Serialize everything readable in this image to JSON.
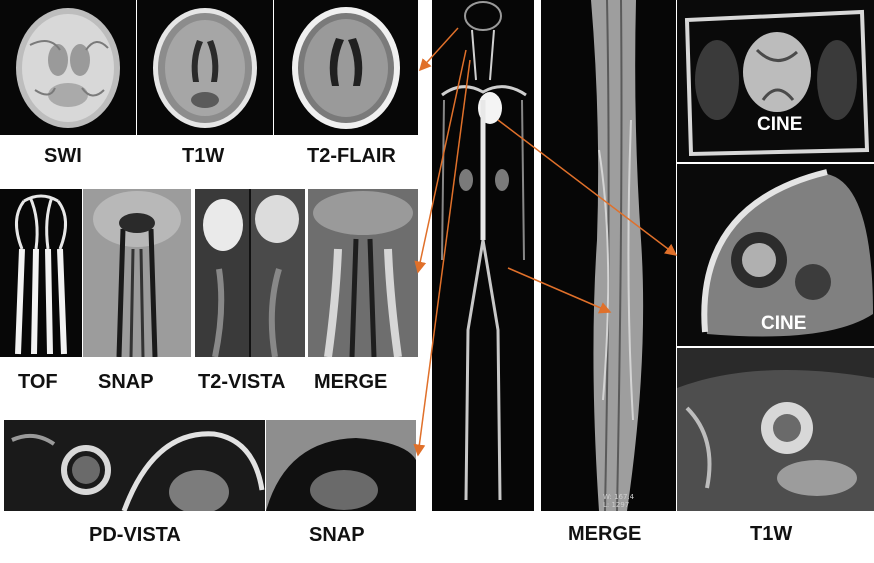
{
  "captions": {
    "swi": "SWI",
    "t1w_brain": "T1W",
    "t2_flair": "T2-FLAIR",
    "tof": "TOF",
    "snap_neck": "SNAP",
    "t2_vista": "T2-VISTA",
    "merge_neck": "MERGE",
    "pd_vista": "PD-VISTA",
    "snap_vessel": "SNAP",
    "merge_leg": "MERGE",
    "t1w_heart": "T1W"
  },
  "overlays": {
    "cine_top": "CINE",
    "cine_mid": "CINE"
  },
  "scan_info": {
    "window": "W: 167.4",
    "level": "L: 1297"
  },
  "colors": {
    "arrow": "#e0702a",
    "panel_bg": "#070707",
    "caption": "#111111"
  }
}
